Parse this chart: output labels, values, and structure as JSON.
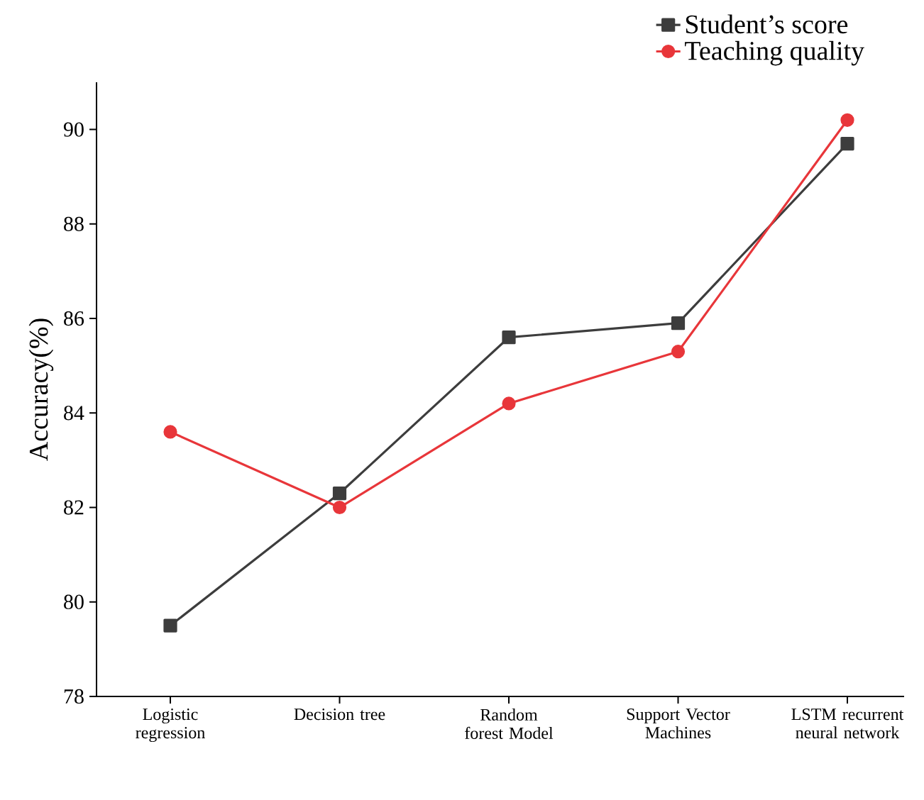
{
  "chart_data": {
    "type": "line",
    "ylabel": "Accuracy(%)",
    "categories": [
      "Logistic regression",
      "Decision tree",
      "Random forest Model",
      "Support Vector Machines",
      "LSTM recurrent neural network"
    ],
    "series": [
      {
        "name": "Student’s score",
        "color": "#3d3d3d",
        "marker": "square",
        "values": [
          79.5,
          82.3,
          85.6,
          85.9,
          89.7
        ]
      },
      {
        "name": "Teaching quality",
        "color": "#e8363a",
        "marker": "circle",
        "values": [
          83.6,
          82.0,
          84.2,
          85.3,
          90.2
        ]
      }
    ],
    "ylim": [
      78,
      91
    ],
    "yticks": [
      78,
      80,
      82,
      84,
      86,
      88,
      90
    ],
    "grid": false,
    "legend": "top right",
    "line_style": "solid"
  }
}
